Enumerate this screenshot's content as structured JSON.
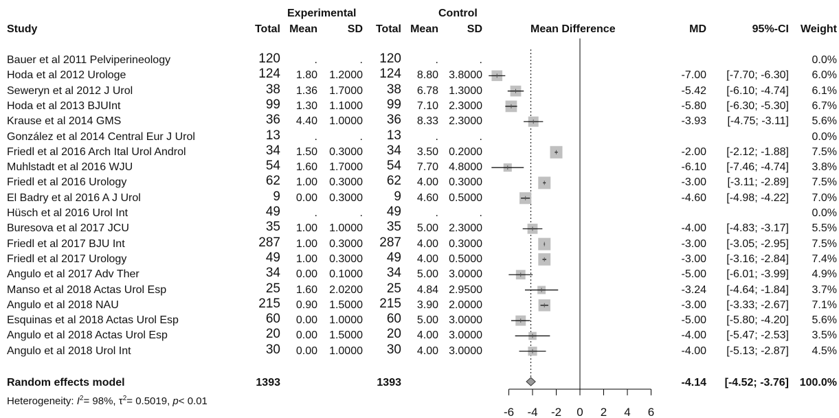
{
  "header": {
    "group1": "Experimental",
    "group2": "Control",
    "study": "Study",
    "total": "Total",
    "mean": "Mean",
    "sd": "SD",
    "mean_difference": "Mean Difference",
    "md": "MD",
    "ci": "95%-CI",
    "weight": "Weight"
  },
  "rows": [
    {
      "study": "Bauer et al 2011 Pelviperineology",
      "e_total": "120",
      "e_mean": ".",
      "e_sd": ".",
      "c_total": "120",
      "c_mean": ".",
      "c_sd": ".",
      "md": "",
      "ci": "",
      "weight": "0.0%"
    },
    {
      "study": "Hoda et al 2012 Urologe",
      "e_total": "124",
      "e_mean": "1.80",
      "e_sd": "1.2000",
      "c_total": "124",
      "c_mean": "8.80",
      "c_sd": "3.8000",
      "md": "-7.00",
      "ci": "[-7.70; -6.30]",
      "weight": "6.0%"
    },
    {
      "study": "Seweryn et al 2012 J Urol",
      "e_total": "38",
      "e_mean": "1.36",
      "e_sd": "1.7000",
      "c_total": "38",
      "c_mean": "6.78",
      "c_sd": "1.3000",
      "md": "-5.42",
      "ci": "[-6.10; -4.74]",
      "weight": "6.1%"
    },
    {
      "study": "Hoda et al 2013 BJUInt",
      "e_total": "99",
      "e_mean": "1.30",
      "e_sd": "1.1000",
      "c_total": "99",
      "c_mean": "7.10",
      "c_sd": "2.3000",
      "md": "-5.80",
      "ci": "[-6.30; -5.30]",
      "weight": "6.7%"
    },
    {
      "study": "Krause et al 2014 GMS",
      "e_total": "36",
      "e_mean": "4.40",
      "e_sd": "1.0000",
      "c_total": "36",
      "c_mean": "8.33",
      "c_sd": "2.3000",
      "md": "-3.93",
      "ci": "[-4.75; -3.11]",
      "weight": "5.6%"
    },
    {
      "study": "González et al 2014 Central Eur J Urol",
      "e_total": "13",
      "e_mean": ".",
      "e_sd": ".",
      "c_total": "13",
      "c_mean": ".",
      "c_sd": ".",
      "md": "",
      "ci": "",
      "weight": "0.0%"
    },
    {
      "study": "Friedl et al 2016 Arch Ital Urol Androl",
      "e_total": "34",
      "e_mean": "1.50",
      "e_sd": "0.3000",
      "c_total": "34",
      "c_mean": "3.50",
      "c_sd": "0.2000",
      "md": "-2.00",
      "ci": "[-2.12; -1.88]",
      "weight": "7.5%"
    },
    {
      "study": "Muhlstadt et al 2016 WJU",
      "e_total": "54",
      "e_mean": "1.60",
      "e_sd": "1.7000",
      "c_total": "54",
      "c_mean": "7.70",
      "c_sd": "4.8000",
      "md": "-6.10",
      "ci": "[-7.46; -4.74]",
      "weight": "3.8%"
    },
    {
      "study": "Friedl et al 2016 Urology",
      "e_total": "62",
      "e_mean": "1.00",
      "e_sd": "0.3000",
      "c_total": "62",
      "c_mean": "4.00",
      "c_sd": "0.3000",
      "md": "-3.00",
      "ci": "[-3.11; -2.89]",
      "weight": "7.5%"
    },
    {
      "study": "El Badry et al 2016 A J Urol",
      "e_total": "9",
      "e_mean": "0.00",
      "e_sd": "0.3000",
      "c_total": "9",
      "c_mean": "4.60",
      "c_sd": "0.5000",
      "md": "-4.60",
      "ci": "[-4.98; -4.22]",
      "weight": "7.0%"
    },
    {
      "study": "Hüsch et al 2016  Urol Int",
      "e_total": "49",
      "e_mean": ".",
      "e_sd": ".",
      "c_total": "49",
      "c_mean": ".",
      "c_sd": ".",
      "md": "",
      "ci": "",
      "weight": "0.0%"
    },
    {
      "study": "Buresova et al 2017  JCU",
      "e_total": "35",
      "e_mean": "1.00",
      "e_sd": "1.0000",
      "c_total": "35",
      "c_mean": "5.00",
      "c_sd": "2.3000",
      "md": "-4.00",
      "ci": "[-4.83; -3.17]",
      "weight": "5.5%"
    },
    {
      "study": "Friedl et al 2017 BJU Int",
      "e_total": "287",
      "e_mean": "1.00",
      "e_sd": "0.3000",
      "c_total": "287",
      "c_mean": "4.00",
      "c_sd": "0.3000",
      "md": "-3.00",
      "ci": "[-3.05; -2.95]",
      "weight": "7.5%"
    },
    {
      "study": "Friedl et al 2017 Urology",
      "e_total": "49",
      "e_mean": "1.00",
      "e_sd": "0.3000",
      "c_total": "49",
      "c_mean": "4.00",
      "c_sd": "0.5000",
      "md": "-3.00",
      "ci": "[-3.16; -2.84]",
      "weight": "7.4%"
    },
    {
      "study": "Angulo et al 2017 Adv Ther",
      "e_total": "34",
      "e_mean": "0.00",
      "e_sd": "0.1000",
      "c_total": "34",
      "c_mean": "5.00",
      "c_sd": "3.0000",
      "md": "-5.00",
      "ci": "[-6.01; -3.99]",
      "weight": "4.9%"
    },
    {
      "study": "Manso et al 2018 Actas Urol Esp",
      "e_total": "25",
      "e_mean": "1.60",
      "e_sd": "2.0200",
      "c_total": "25",
      "c_mean": "4.84",
      "c_sd": "2.9500",
      "md": "-3.24",
      "ci": "[-4.64; -1.84]",
      "weight": "3.7%"
    },
    {
      "study": "Angulo et al 2018 NAU",
      "e_total": "215",
      "e_mean": "0.90",
      "e_sd": "1.5000",
      "c_total": "215",
      "c_mean": "3.90",
      "c_sd": "2.0000",
      "md": "-3.00",
      "ci": "[-3.33; -2.67]",
      "weight": "7.1%"
    },
    {
      "study": "Esquinas et al 2018 Actas Urol Esp",
      "e_total": "60",
      "e_mean": "0.00",
      "e_sd": "1.0000",
      "c_total": "60",
      "c_mean": "5.00",
      "c_sd": "3.0000",
      "md": "-5.00",
      "ci": "[-5.80; -4.20]",
      "weight": "5.6%"
    },
    {
      "study": "Angulo et al 2018 Actas Urol Esp",
      "e_total": "20",
      "e_mean": "0.00",
      "e_sd": "1.5000",
      "c_total": "20",
      "c_mean": "4.00",
      "c_sd": "3.0000",
      "md": "-4.00",
      "ci": "[-5.47; -2.53]",
      "weight": "3.5%"
    },
    {
      "study": "Angulo et al 2018 Urol Int",
      "e_total": "30",
      "e_mean": "0.00",
      "e_sd": "1.0000",
      "c_total": "30",
      "c_mean": "4.00",
      "c_sd": "3.0000",
      "md": "-4.00",
      "ci": "[-5.13; -2.87]",
      "weight": "4.5%"
    }
  ],
  "summary": {
    "label": "Random effects model",
    "e_total": "1393",
    "c_total": "1393",
    "md": "-4.14",
    "ci": "[-4.52; -3.76]",
    "weight": "100.0%",
    "heterogeneity_prefix": "Heterogeneity: ",
    "i2_symbol": "I",
    "i2_value": "= 98%, ",
    "tau_symbol": "τ",
    "tau_value": "= 0.5019, ",
    "p_symbol": "p",
    "p_value": "< 0.01"
  },
  "chart_data": {
    "type": "forest",
    "x_ticks": [
      "-6",
      "-4",
      "-2",
      "0",
      "2",
      "4",
      "6"
    ],
    "xlim": [
      -7.5,
      7
    ],
    "reference_line": 0,
    "summary_line": -4.14,
    "studies": [
      {
        "md": null,
        "lo": null,
        "hi": null,
        "weight": 0
      },
      {
        "md": -7.0,
        "lo": -7.7,
        "hi": -6.3,
        "weight": 6.0
      },
      {
        "md": -5.42,
        "lo": -6.1,
        "hi": -4.74,
        "weight": 6.1
      },
      {
        "md": -5.8,
        "lo": -6.3,
        "hi": -5.3,
        "weight": 6.7
      },
      {
        "md": -3.93,
        "lo": -4.75,
        "hi": -3.11,
        "weight": 5.6
      },
      {
        "md": null,
        "lo": null,
        "hi": null,
        "weight": 0
      },
      {
        "md": -2.0,
        "lo": -2.12,
        "hi": -1.88,
        "weight": 7.5
      },
      {
        "md": -6.1,
        "lo": -7.46,
        "hi": -4.74,
        "weight": 3.8
      },
      {
        "md": -3.0,
        "lo": -3.11,
        "hi": -2.89,
        "weight": 7.5
      },
      {
        "md": -4.6,
        "lo": -4.98,
        "hi": -4.22,
        "weight": 7.0
      },
      {
        "md": null,
        "lo": null,
        "hi": null,
        "weight": 0
      },
      {
        "md": -4.0,
        "lo": -4.83,
        "hi": -3.17,
        "weight": 5.5
      },
      {
        "md": -3.0,
        "lo": -3.05,
        "hi": -2.95,
        "weight": 7.5
      },
      {
        "md": -3.0,
        "lo": -3.16,
        "hi": -2.84,
        "weight": 7.4
      },
      {
        "md": -5.0,
        "lo": -6.01,
        "hi": -3.99,
        "weight": 4.9
      },
      {
        "md": -3.24,
        "lo": -4.64,
        "hi": -1.84,
        "weight": 3.7
      },
      {
        "md": -3.0,
        "lo": -3.33,
        "hi": -2.67,
        "weight": 7.1
      },
      {
        "md": -5.0,
        "lo": -5.8,
        "hi": -4.2,
        "weight": 5.6
      },
      {
        "md": -4.0,
        "lo": -5.47,
        "hi": -2.53,
        "weight": 3.5
      },
      {
        "md": -4.0,
        "lo": -5.13,
        "hi": -2.87,
        "weight": 4.5
      }
    ],
    "pooled": {
      "md": -4.14,
      "lo": -4.52,
      "hi": -3.76
    },
    "colors": {
      "box": "#c0c0c0",
      "line": "#000000",
      "diamond": "#9a9a9a"
    }
  }
}
